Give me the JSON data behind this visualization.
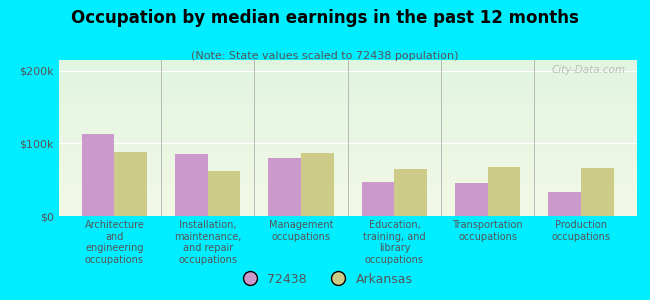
{
  "title": "Occupation by median earnings in the past 12 months",
  "subtitle": "(Note: State values scaled to 72438 population)",
  "categories": [
    "Architecture\nand\nengineering\noccupations",
    "Installation,\nmaintenance,\nand repair\noccupations",
    "Management\noccupations",
    "Education,\ntraining, and\nlibrary\noccupations",
    "Transportation\noccupations",
    "Production\noccupations"
  ],
  "values_72438": [
    113000,
    85000,
    80000,
    47000,
    46000,
    33000
  ],
  "values_arkansas": [
    88000,
    62000,
    87000,
    65000,
    68000,
    66000
  ],
  "color_72438": "#cc99cc",
  "color_arkansas": "#cccc88",
  "background_outer": "#00eeff",
  "yticks": [
    0,
    100000,
    200000
  ],
  "ytick_labels": [
    "$0",
    "$100k",
    "$200k"
  ],
  "ylim": [
    0,
    215000
  ],
  "legend_label_72438": "72438",
  "legend_label_arkansas": "Arkansas",
  "bar_width": 0.35,
  "watermark": "City-Data.com"
}
